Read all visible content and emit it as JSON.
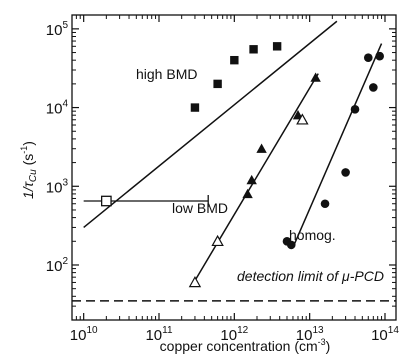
{
  "chart_data": {
    "type": "scatter",
    "x_scale": "log",
    "y_scale": "log",
    "xlabel": "copper concentration (cm⁻³)",
    "ylabel": "1/τCu (s⁻¹)",
    "xlim": [
      7000000000.0,
      140000000000000.0
    ],
    "ylim": [
      20,
      150000
    ],
    "x_ticks": [
      {
        "value": 10000000000.0,
        "base": "10",
        "exp": "10"
      },
      {
        "value": 100000000000.0,
        "base": "10",
        "exp": "11"
      },
      {
        "value": 1000000000000.0,
        "base": "10",
        "exp": "12"
      },
      {
        "value": 10000000000000.0,
        "base": "10",
        "exp": "13"
      },
      {
        "value": 100000000000000.0,
        "base": "10",
        "exp": "14"
      }
    ],
    "y_ticks": [
      {
        "value": 100,
        "base": "10",
        "exp": "2"
      },
      {
        "value": 1000,
        "base": "10",
        "exp": "3"
      },
      {
        "value": 10000,
        "base": "10",
        "exp": "4"
      },
      {
        "value": 100000,
        "base": "10",
        "exp": "5"
      }
    ],
    "series": [
      {
        "name": "high BMD",
        "marker": "square-filled",
        "points": [
          [
            300000000000.0,
            10000
          ],
          [
            600000000000.0,
            20000
          ],
          [
            1000000000000.0,
            40000
          ],
          [
            1800000000000.0,
            55000
          ],
          [
            3700000000000.0,
            60000
          ]
        ],
        "fit_line": [
          [
            10000000000.0,
            300
          ],
          [
            23000000000000.0,
            125000
          ]
        ]
      },
      {
        "name": "high BMD (open square)",
        "marker": "square-open",
        "points": [
          [
            20000000000.0,
            650
          ]
        ],
        "x_error": [
          [
            10000000000.0,
            450000000000.0
          ]
        ]
      },
      {
        "name": "low BMD",
        "marker": "triangle-filled",
        "points": [
          [
            1500000000000.0,
            800
          ],
          [
            1700000000000.0,
            1200
          ],
          [
            2300000000000.0,
            3000
          ],
          [
            7000000000000.0,
            8000
          ],
          [
            12000000000000.0,
            24000
          ]
        ],
        "fit_line": [
          [
            290000000000.0,
            60
          ],
          [
            13000000000000.0,
            27000
          ]
        ]
      },
      {
        "name": "low BMD (open triangle)",
        "marker": "triangle-open",
        "points": [
          [
            300000000000.0,
            60
          ],
          [
            600000000000.0,
            200
          ],
          [
            8000000000000.0,
            7000
          ]
        ]
      },
      {
        "name": "homog.",
        "marker": "circle-filled",
        "points": [
          [
            5000000000000.0,
            200
          ],
          [
            5700000000000.0,
            180
          ],
          [
            16000000000000.0,
            600
          ],
          [
            30000000000000.0,
            1500
          ],
          [
            40000000000000.0,
            9500
          ],
          [
            60000000000000.0,
            43000
          ],
          [
            70000000000000.0,
            18000
          ],
          [
            85000000000000.0,
            45000
          ]
        ],
        "fit_line": [
          [
            6200000000000.0,
            180
          ],
          [
            90000000000000.0,
            65000
          ]
        ]
      }
    ],
    "reference_lines": [
      {
        "label": "detection limit of μ-PCD",
        "y": 35,
        "style": "dashed"
      }
    ],
    "annotations": [
      {
        "text": "high BMD"
      },
      {
        "text": "low BMD"
      },
      {
        "text": "homog."
      },
      {
        "text": "detection limit of μ-PCD"
      }
    ]
  },
  "labels": {
    "xlabel_main": "copper concentration (cm",
    "xlabel_exp": "-3",
    "xlabel_tail": ")",
    "ylabel_main": "1/τ",
    "ylabel_sub": "Cu",
    "ylabel_unit": " (s",
    "ylabel_exp": "-1",
    "ylabel_tail": ")",
    "anno_high": "high BMD",
    "anno_low": "low BMD",
    "anno_homog": "homog.",
    "anno_detect": "detection limit of μ-PCD"
  }
}
